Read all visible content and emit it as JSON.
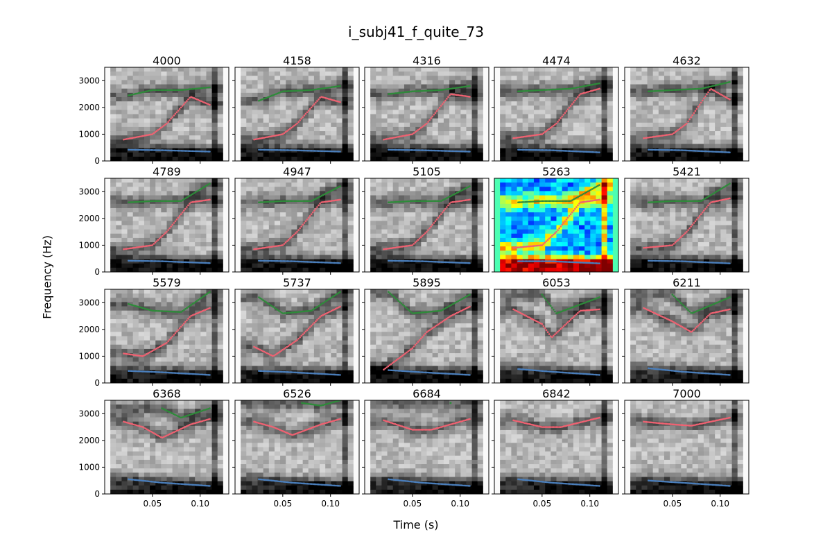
{
  "figure": {
    "title": "i_subj41_f_quite_73",
    "xlabel": "Time (s)",
    "ylabel": "Frequency (Hz)"
  },
  "chart_data": {
    "type": "heatmap",
    "grid": {
      "rows": 4,
      "cols": 5
    },
    "xlim": [
      0.0,
      0.13
    ],
    "ylim": [
      0,
      3500
    ],
    "xticks": [
      0.05,
      0.1
    ],
    "yticks": [
      0,
      1000,
      2000,
      3000
    ],
    "colormaps": {
      "default": "gray_r",
      "highlight": "jet"
    },
    "highlight_panel": "5263",
    "series_colors": {
      "F1": "#4a7ebb",
      "F2": "#f06272",
      "F3": "#2e8b3a"
    },
    "panels": [
      {
        "title": "4000",
        "F1": [
          [
            0.025,
            420
          ],
          [
            0.06,
            400
          ],
          [
            0.11,
            350
          ]
        ],
        "F2": [
          [
            0.02,
            800
          ],
          [
            0.05,
            1000
          ],
          [
            0.065,
            1400
          ],
          [
            0.09,
            2400
          ],
          [
            0.11,
            2100
          ]
        ],
        "F3": [
          [
            0.025,
            2450
          ],
          [
            0.05,
            2650
          ],
          [
            0.08,
            2650
          ],
          [
            0.11,
            2750
          ]
        ]
      },
      {
        "title": "4158",
        "F1": [
          [
            0.025,
            420
          ],
          [
            0.06,
            400
          ],
          [
            0.11,
            350
          ]
        ],
        "F2": [
          [
            0.02,
            800
          ],
          [
            0.05,
            1000
          ],
          [
            0.065,
            1400
          ],
          [
            0.09,
            2400
          ],
          [
            0.11,
            2200
          ]
        ],
        "F3": [
          [
            0.025,
            2250
          ],
          [
            0.05,
            2600
          ],
          [
            0.08,
            2650
          ],
          [
            0.11,
            2800
          ]
        ]
      },
      {
        "title": "4316",
        "F1": [
          [
            0.025,
            420
          ],
          [
            0.06,
            400
          ],
          [
            0.11,
            350
          ]
        ],
        "F2": [
          [
            0.02,
            800
          ],
          [
            0.05,
            1000
          ],
          [
            0.065,
            1400
          ],
          [
            0.09,
            2500
          ],
          [
            0.11,
            2400
          ]
        ],
        "F3": [
          [
            0.025,
            2500
          ],
          [
            0.05,
            2600
          ],
          [
            0.08,
            2650
          ],
          [
            0.11,
            2800
          ]
        ]
      },
      {
        "title": "4474",
        "F1": [
          [
            0.025,
            420
          ],
          [
            0.06,
            400
          ],
          [
            0.11,
            320
          ]
        ],
        "F2": [
          [
            0.02,
            850
          ],
          [
            0.05,
            1000
          ],
          [
            0.065,
            1400
          ],
          [
            0.09,
            2500
          ],
          [
            0.11,
            2700
          ]
        ],
        "F3": [
          [
            0.025,
            2600
          ],
          [
            0.05,
            2650
          ],
          [
            0.08,
            2700
          ],
          [
            0.11,
            2900
          ]
        ]
      },
      {
        "title": "4632",
        "F1": [
          [
            0.025,
            420
          ],
          [
            0.06,
            400
          ],
          [
            0.11,
            320
          ]
        ],
        "F2": [
          [
            0.02,
            850
          ],
          [
            0.05,
            1000
          ],
          [
            0.065,
            1400
          ],
          [
            0.09,
            2700
          ],
          [
            0.11,
            2300
          ]
        ],
        "F3": [
          [
            0.025,
            2600
          ],
          [
            0.05,
            2650
          ],
          [
            0.08,
            2700
          ],
          [
            0.11,
            2950
          ]
        ]
      },
      {
        "title": "4789",
        "F1": [
          [
            0.025,
            420
          ],
          [
            0.06,
            400
          ],
          [
            0.11,
            330
          ]
        ],
        "F2": [
          [
            0.02,
            850
          ],
          [
            0.05,
            1000
          ],
          [
            0.065,
            1500
          ],
          [
            0.09,
            2600
          ],
          [
            0.11,
            2700
          ]
        ],
        "F3": [
          [
            0.025,
            2600
          ],
          [
            0.05,
            2650
          ],
          [
            0.08,
            2650
          ],
          [
            0.11,
            3300
          ]
        ]
      },
      {
        "title": "4947",
        "F1": [
          [
            0.025,
            420
          ],
          [
            0.06,
            400
          ],
          [
            0.11,
            330
          ]
        ],
        "F2": [
          [
            0.02,
            850
          ],
          [
            0.05,
            1000
          ],
          [
            0.065,
            1500
          ],
          [
            0.09,
            2600
          ],
          [
            0.11,
            2700
          ]
        ],
        "F3": [
          [
            0.025,
            2600
          ],
          [
            0.05,
            2650
          ],
          [
            0.08,
            2650
          ],
          [
            0.11,
            3200
          ]
        ]
      },
      {
        "title": "5105",
        "F1": [
          [
            0.025,
            420
          ],
          [
            0.06,
            400
          ],
          [
            0.11,
            330
          ]
        ],
        "F2": [
          [
            0.02,
            850
          ],
          [
            0.05,
            1000
          ],
          [
            0.065,
            1500
          ],
          [
            0.09,
            2600
          ],
          [
            0.11,
            2700
          ]
        ],
        "F3": [
          [
            0.025,
            2600
          ],
          [
            0.05,
            2650
          ],
          [
            0.08,
            2650
          ],
          [
            0.11,
            3200
          ]
        ]
      },
      {
        "title": "5263",
        "F1": [
          [
            0.025,
            400
          ],
          [
            0.06,
            400
          ],
          [
            0.11,
            320
          ]
        ],
        "F2": [
          [
            0.02,
            900
          ],
          [
            0.05,
            1000
          ],
          [
            0.065,
            1500
          ],
          [
            0.09,
            2600
          ],
          [
            0.11,
            2700
          ]
        ],
        "F3": [
          [
            0.025,
            2600
          ],
          [
            0.05,
            2650
          ],
          [
            0.08,
            2650
          ],
          [
            0.11,
            3250
          ]
        ]
      },
      {
        "title": "5421",
        "F1": [
          [
            0.025,
            420
          ],
          [
            0.06,
            400
          ],
          [
            0.11,
            320
          ]
        ],
        "F2": [
          [
            0.02,
            900
          ],
          [
            0.05,
            1000
          ],
          [
            0.065,
            1500
          ],
          [
            0.09,
            2600
          ],
          [
            0.11,
            2750
          ]
        ],
        "F3": [
          [
            0.025,
            2600
          ],
          [
            0.05,
            2650
          ],
          [
            0.08,
            2650
          ],
          [
            0.11,
            3300
          ]
        ]
      },
      {
        "title": "5579",
        "F1": [
          [
            0.025,
            450
          ],
          [
            0.06,
            400
          ],
          [
            0.11,
            300
          ]
        ],
        "F2": [
          [
            0.02,
            1100
          ],
          [
            0.04,
            1000
          ],
          [
            0.065,
            1500
          ],
          [
            0.09,
            2500
          ],
          [
            0.11,
            2800
          ]
        ],
        "F3": [
          [
            0.025,
            2950
          ],
          [
            0.05,
            2700
          ],
          [
            0.08,
            2650
          ],
          [
            0.11,
            3400
          ]
        ]
      },
      {
        "title": "5737",
        "F1": [
          [
            0.025,
            450
          ],
          [
            0.06,
            400
          ],
          [
            0.11,
            300
          ]
        ],
        "F2": [
          [
            0.02,
            1350
          ],
          [
            0.04,
            1000
          ],
          [
            0.065,
            1600
          ],
          [
            0.09,
            2500
          ],
          [
            0.11,
            2850
          ]
        ],
        "F3": [
          [
            0.025,
            3200
          ],
          [
            0.05,
            2600
          ],
          [
            0.08,
            2700
          ],
          [
            0.11,
            3400
          ]
        ]
      },
      {
        "title": "5895",
        "F1": [
          [
            0.025,
            480
          ],
          [
            0.06,
            400
          ],
          [
            0.11,
            300
          ]
        ],
        "F2": [
          [
            0.02,
            500
          ],
          [
            0.05,
            1300
          ],
          [
            0.065,
            1900
          ],
          [
            0.09,
            2500
          ],
          [
            0.11,
            2850
          ]
        ],
        "F3": [
          [
            0.025,
            3400
          ],
          [
            0.05,
            2600
          ],
          [
            0.08,
            2700
          ],
          [
            0.11,
            3300
          ]
        ]
      },
      {
        "title": "6053",
        "F1": [
          [
            0.025,
            520
          ],
          [
            0.06,
            420
          ],
          [
            0.11,
            300
          ]
        ],
        "F2": [
          [
            0.02,
            2750
          ],
          [
            0.05,
            2200
          ],
          [
            0.06,
            1700
          ],
          [
            0.09,
            2700
          ],
          [
            0.11,
            2750
          ]
        ],
        "F3": [
          [
            0.05,
            3300
          ],
          [
            0.065,
            2600
          ],
          [
            0.11,
            3200
          ]
        ]
      },
      {
        "title": "6211",
        "F1": [
          [
            0.025,
            550
          ],
          [
            0.06,
            420
          ],
          [
            0.11,
            300
          ]
        ],
        "F2": [
          [
            0.02,
            2800
          ],
          [
            0.05,
            2300
          ],
          [
            0.07,
            1900
          ],
          [
            0.09,
            2600
          ],
          [
            0.11,
            2750
          ]
        ],
        "F3": [
          [
            0.05,
            3300
          ],
          [
            0.07,
            2600
          ],
          [
            0.11,
            3200
          ]
        ]
      },
      {
        "title": "6368",
        "F1": [
          [
            0.025,
            550
          ],
          [
            0.06,
            420
          ],
          [
            0.11,
            300
          ]
        ],
        "F2": [
          [
            0.02,
            2700
          ],
          [
            0.04,
            2500
          ],
          [
            0.06,
            2100
          ],
          [
            0.09,
            2600
          ],
          [
            0.11,
            2800
          ]
        ],
        "F3": [
          [
            0.06,
            3200
          ],
          [
            0.08,
            2850
          ],
          [
            0.11,
            3200
          ]
        ]
      },
      {
        "title": "6526",
        "F1": [
          [
            0.025,
            550
          ],
          [
            0.06,
            420
          ],
          [
            0.11,
            300
          ]
        ],
        "F2": [
          [
            0.02,
            2700
          ],
          [
            0.04,
            2500
          ],
          [
            0.06,
            2200
          ],
          [
            0.09,
            2600
          ],
          [
            0.11,
            2800
          ]
        ],
        "F3": [
          [
            0.07,
            3400
          ],
          [
            0.09,
            3300
          ],
          [
            0.11,
            3500
          ]
        ]
      },
      {
        "title": "6684",
        "F1": [
          [
            0.025,
            550
          ],
          [
            0.06,
            420
          ],
          [
            0.11,
            300
          ]
        ],
        "F2": [
          [
            0.02,
            2750
          ],
          [
            0.05,
            2400
          ],
          [
            0.07,
            2400
          ],
          [
            0.11,
            2800
          ]
        ],
        "F3": [
          [
            0.09,
            3400
          ]
        ]
      },
      {
        "title": "6842",
        "F1": [
          [
            0.025,
            550
          ],
          [
            0.06,
            420
          ],
          [
            0.11,
            300
          ]
        ],
        "F2": [
          [
            0.02,
            2750
          ],
          [
            0.05,
            2500
          ],
          [
            0.07,
            2500
          ],
          [
            0.11,
            2850
          ]
        ],
        "F3": []
      },
      {
        "title": "7000",
        "F1": [
          [
            0.025,
            500
          ],
          [
            0.06,
            420
          ],
          [
            0.11,
            300
          ]
        ],
        "F2": [
          [
            0.02,
            2700
          ],
          [
            0.05,
            2600
          ],
          [
            0.07,
            2550
          ],
          [
            0.11,
            2850
          ]
        ],
        "F3": []
      }
    ]
  }
}
